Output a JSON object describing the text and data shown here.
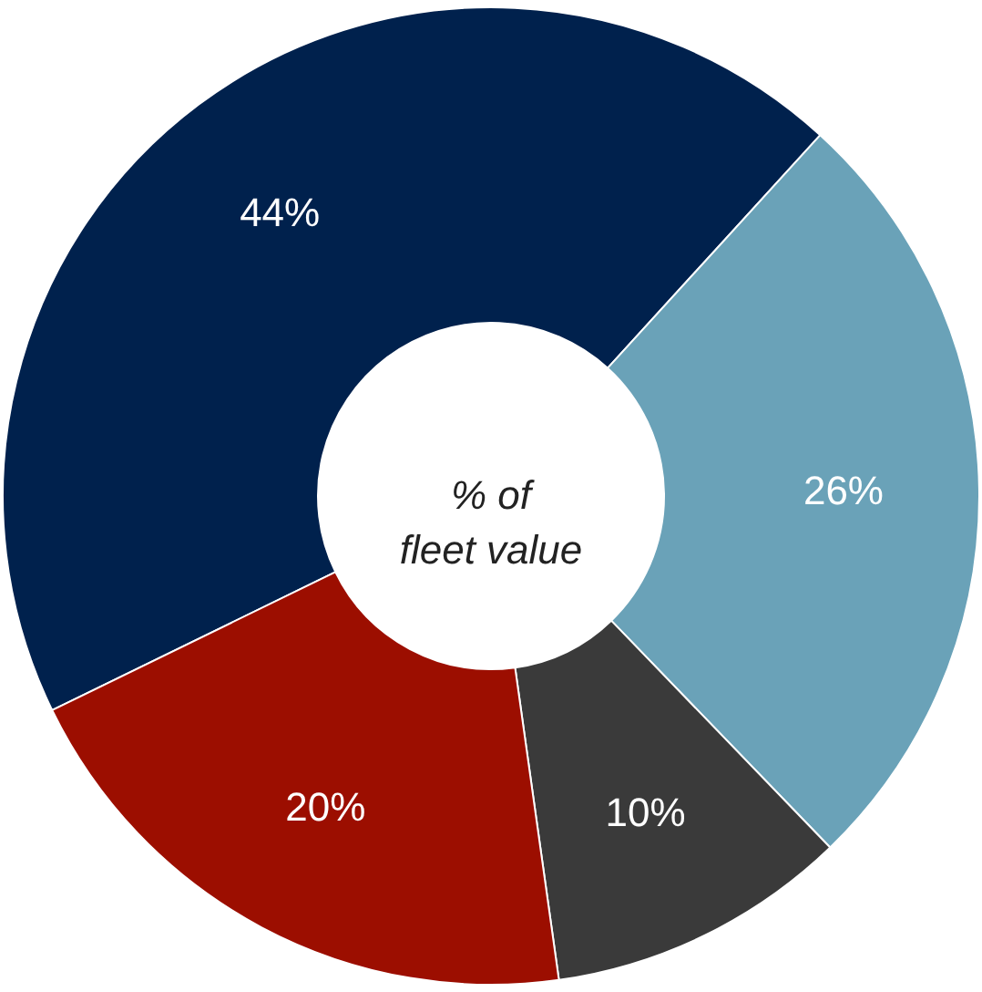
{
  "chart_data": {
    "type": "donut",
    "categories": [
      null,
      null,
      null,
      null
    ],
    "values": [
      44,
      26,
      10,
      20
    ],
    "colors": [
      "#00214d",
      "#6aa2b8",
      "#3a3a3a",
      "#9c0e00"
    ],
    "value_labels": [
      "44%",
      "26%",
      "10%",
      "20%"
    ],
    "annotations": [
      "% of\nfleet value"
    ]
  }
}
